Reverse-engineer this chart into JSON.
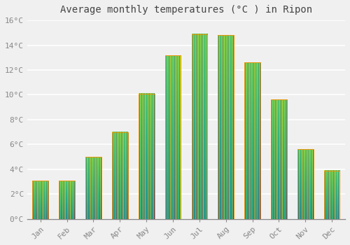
{
  "title": "Average monthly temperatures (°C ) in Ripon",
  "months": [
    "Jan",
    "Feb",
    "Mar",
    "Apr",
    "May",
    "Jun",
    "Jul",
    "Aug",
    "Sep",
    "Oct",
    "Nov",
    "Dec"
  ],
  "values": [
    3.1,
    3.1,
    5.0,
    7.0,
    10.1,
    13.2,
    14.9,
    14.8,
    12.6,
    9.6,
    5.6,
    3.9
  ],
  "bar_color_bottom": "#FFD966",
  "bar_color_top": "#FFA500",
  "bar_edge_color": "#E8960A",
  "ylim": [
    0,
    16
  ],
  "yticks": [
    0,
    2,
    4,
    6,
    8,
    10,
    12,
    14,
    16
  ],
  "ytick_labels": [
    "0°C",
    "2°C",
    "4°C",
    "6°C",
    "8°C",
    "10°C",
    "12°C",
    "14°C",
    "16°C"
  ],
  "background_color": "#F0F0F0",
  "grid_color": "#FFFFFF",
  "title_fontsize": 10,
  "tick_fontsize": 8,
  "bar_width": 0.6
}
